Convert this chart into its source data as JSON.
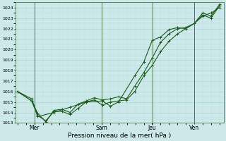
{
  "xlabel": "Pression niveau de la mer( hPa )",
  "ylim": [
    1013,
    1024.5
  ],
  "yticks": [
    1013,
    1014,
    1015,
    1016,
    1017,
    1018,
    1019,
    1020,
    1021,
    1022,
    1023,
    1024
  ],
  "background_color": "#cce8e8",
  "grid_color": "#aacccc",
  "line_color": "#1a5c1a",
  "day_labels": [
    "Mer",
    "Sam",
    "Jeu",
    "Ven"
  ],
  "day_positions": [
    0.083,
    0.417,
    0.667,
    0.875
  ],
  "series1": {
    "x": [
      0.0,
      0.07,
      0.1,
      0.14,
      0.18,
      0.22,
      0.26,
      0.3,
      0.34,
      0.38,
      0.42,
      0.46,
      0.5,
      0.54,
      0.58,
      0.625,
      0.667,
      0.708,
      0.75,
      0.792,
      0.833,
      0.875,
      0.917,
      0.958,
      1.0
    ],
    "y": [
      1016.0,
      1015.3,
      1013.7,
      1013.2,
      1014.1,
      1014.1,
      1013.8,
      1014.4,
      1015.0,
      1015.2,
      1014.7,
      1015.0,
      1015.1,
      1015.2,
      1016.0,
      1017.5,
      1018.5,
      1019.8,
      1020.8,
      1021.5,
      1022.0,
      1022.5,
      1023.2,
      1023.5,
      1024.0
    ]
  },
  "series2": {
    "x": [
      0.0,
      0.07,
      0.1,
      0.14,
      0.18,
      0.22,
      0.26,
      0.3,
      0.34,
      0.38,
      0.42,
      0.46,
      0.5,
      0.54,
      0.58,
      0.625,
      0.667,
      0.708,
      0.75,
      0.792,
      0.833,
      0.875,
      0.917,
      0.958,
      1.0
    ],
    "y": [
      1016.0,
      1015.1,
      1013.9,
      1013.1,
      1014.2,
      1014.3,
      1014.0,
      1014.8,
      1015.1,
      1015.4,
      1015.2,
      1015.3,
      1015.5,
      1015.3,
      1016.5,
      1017.8,
      1019.2,
      1020.7,
      1021.5,
      1022.0,
      1022.1,
      1022.5,
      1023.5,
      1023.2,
      1024.3
    ]
  },
  "series3": {
    "x": [
      0.0,
      0.07,
      0.1,
      0.18,
      0.26,
      0.34,
      0.42,
      0.46,
      0.5,
      0.58,
      0.625,
      0.667,
      0.708,
      0.75,
      0.792,
      0.833,
      0.875,
      0.917,
      0.958,
      1.0
    ],
    "y": [
      1016.0,
      1015.1,
      1013.6,
      1014.0,
      1014.5,
      1015.0,
      1015.1,
      1014.6,
      1015.0,
      1017.5,
      1018.8,
      1020.9,
      1021.2,
      1021.9,
      1022.1,
      1022.0,
      1022.5,
      1023.3,
      1023.0,
      1024.2
    ]
  }
}
